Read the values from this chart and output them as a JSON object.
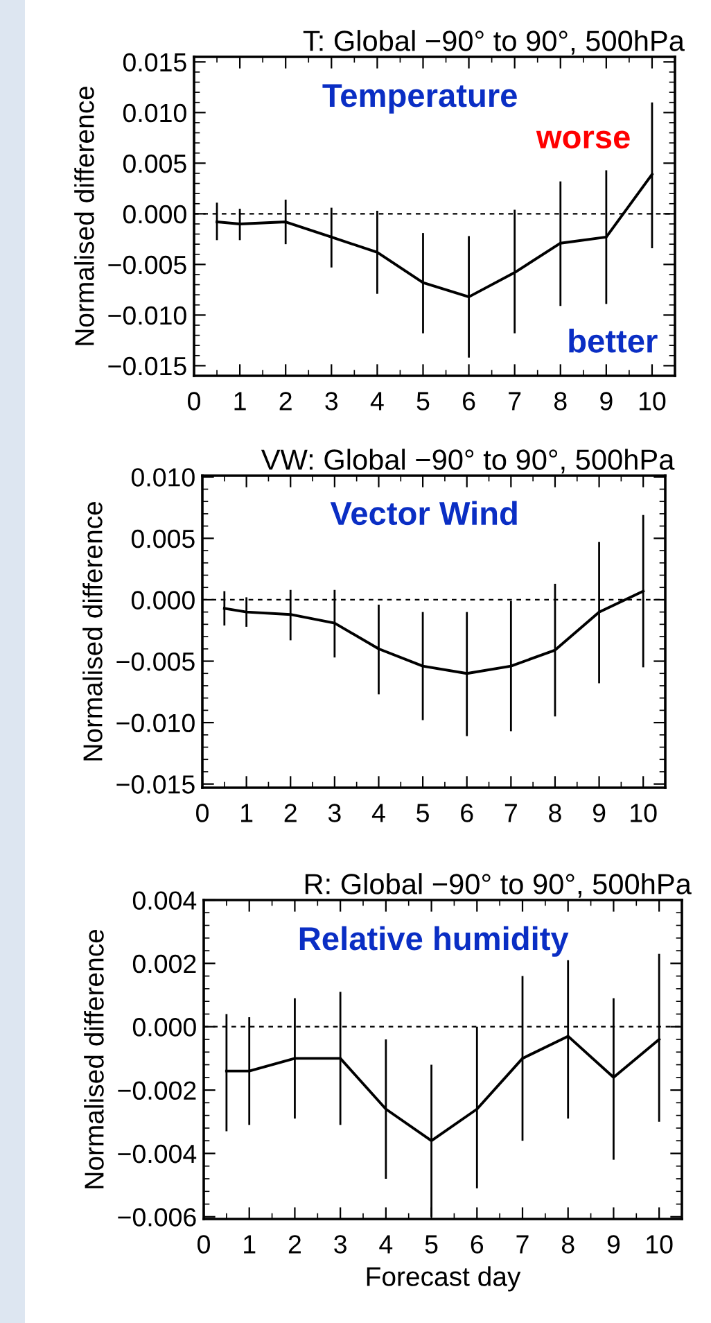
{
  "chart_data": [
    {
      "type": "line",
      "title": "T: Global −90° to 90°, 500hPa",
      "ylabel": "Normalised difference",
      "annotations": [
        "Temperature",
        "worse",
        "better"
      ],
      "x": [
        0.5,
        1,
        2,
        3,
        4,
        5,
        6,
        7,
        8,
        9,
        10
      ],
      "series": [
        {
          "color": "#000000",
          "values": [
            -0.0008,
            -0.001,
            -0.0008,
            -0.0023,
            -0.0038,
            -0.0068,
            -0.0082,
            -0.0058,
            -0.0029,
            -0.0023,
            0.0039
          ],
          "errors": [
            [
              -0.0026,
              0.0011
            ],
            [
              -0.0026,
              0.0005
            ],
            [
              -0.003,
              0.0014
            ],
            [
              -0.0053,
              0.0006
            ],
            [
              -0.0079,
              0.0003
            ],
            [
              -0.0118,
              -0.0019
            ],
            [
              -0.0142,
              -0.0022
            ],
            [
              -0.0118,
              0.0004
            ],
            [
              -0.0091,
              0.0032
            ],
            [
              -0.0089,
              0.0043
            ],
            [
              -0.0034,
              0.011
            ]
          ]
        }
      ],
      "xlim": [
        0,
        10.5
      ],
      "xticks": [
        0,
        1,
        2,
        3,
        4,
        5,
        6,
        7,
        8,
        9,
        10
      ],
      "ylim": [
        -0.016,
        0.0155
      ],
      "yticks": [
        {
          "value": -0.015,
          "label": "−0.015"
        },
        {
          "value": -0.01,
          "label": "−0.010"
        },
        {
          "value": -0.005,
          "label": "−0.005"
        },
        {
          "value": 0,
          "label": "0.000"
        },
        {
          "value": 0.005,
          "label": "0.005"
        },
        {
          "value": 0.01,
          "label": "0.010"
        },
        {
          "value": 0.015,
          "label": "0.015"
        }
      ],
      "ref_lines": [
        {
          "axis": "y",
          "value": 0,
          "label": null,
          "color": "#000000",
          "line_style": "dashed"
        }
      ],
      "grid": false,
      "legend": false,
      "marker": "none",
      "line_style": "solid"
    },
    {
      "type": "line",
      "title": "VW: Global −90° to 90°, 500hPa",
      "ylabel": "Normalised difference",
      "annotations": [
        "Vector Wind"
      ],
      "x": [
        0.5,
        1,
        2,
        3,
        4,
        5,
        6,
        7,
        8,
        9,
        10
      ],
      "series": [
        {
          "color": "#000000",
          "values": [
            -0.0007,
            -0.001,
            -0.0012,
            -0.0019,
            -0.004,
            -0.0054,
            -0.006,
            -0.0054,
            -0.0041,
            -0.001,
            0.0007
          ],
          "errors": [
            [
              -0.0021,
              0.0007
            ],
            [
              -0.0022,
              0.0002
            ],
            [
              -0.0033,
              0.0008
            ],
            [
              -0.0047,
              0.0008
            ],
            [
              -0.0077,
              -0.0004
            ],
            [
              -0.0098,
              -0.001
            ],
            [
              -0.0111,
              -0.001
            ],
            [
              -0.0107,
              -0.0001
            ],
            [
              -0.0095,
              0.0013
            ],
            [
              -0.0068,
              0.0047
            ],
            [
              -0.0055,
              0.0069
            ]
          ]
        }
      ],
      "xlim": [
        0,
        10.5
      ],
      "xticks": [
        0,
        1,
        2,
        3,
        4,
        5,
        6,
        7,
        8,
        9,
        10
      ],
      "ylim": [
        -0.0153,
        0.0101
      ],
      "yticks": [
        {
          "value": -0.015,
          "label": "−0.015"
        },
        {
          "value": -0.01,
          "label": "−0.010"
        },
        {
          "value": -0.005,
          "label": "−0.005"
        },
        {
          "value": 0,
          "label": "0.000"
        },
        {
          "value": 0.005,
          "label": "0.005"
        },
        {
          "value": 0.01,
          "label": "0.010"
        }
      ],
      "ref_lines": [
        {
          "axis": "y",
          "value": 0,
          "label": null,
          "color": "#000000",
          "line_style": "dashed"
        }
      ],
      "grid": false,
      "legend": false,
      "marker": "none",
      "line_style": "solid"
    },
    {
      "type": "line",
      "title": "R: Global −90° to 90°, 500hPa",
      "xlabel": "Forecast day",
      "ylabel": "Normalised difference",
      "annotations": [
        "Relative humidity"
      ],
      "x": [
        0.5,
        1,
        2,
        3,
        4,
        5,
        6,
        7,
        8,
        9,
        10
      ],
      "series": [
        {
          "color": "#000000",
          "values": [
            -0.0014,
            -0.0014,
            -0.001,
            -0.001,
            -0.0026,
            -0.0036,
            -0.0026,
            -0.001,
            -0.0003,
            -0.0016,
            -0.0004
          ],
          "errors": [
            [
              -0.0033,
              0.0004
            ],
            [
              -0.0031,
              0.0003
            ],
            [
              -0.0029,
              0.0009
            ],
            [
              -0.0031,
              0.0011
            ],
            [
              -0.0048,
              -0.0004
            ],
            [
              -0.006,
              -0.0012
            ],
            [
              -0.0051,
              0.0
            ],
            [
              -0.0036,
              0.0016
            ],
            [
              -0.0029,
              0.0021
            ],
            [
              -0.0042,
              0.0009
            ],
            [
              -0.003,
              0.0023
            ]
          ]
        }
      ],
      "xlim": [
        0,
        10.5
      ],
      "xticks": [
        0,
        1,
        2,
        3,
        4,
        5,
        6,
        7,
        8,
        9,
        10
      ],
      "ylim": [
        -0.00607,
        0.004
      ],
      "yticks": [
        {
          "value": -0.006,
          "label": "−0.006"
        },
        {
          "value": -0.004,
          "label": "−0.004"
        },
        {
          "value": -0.002,
          "label": "−0.002"
        },
        {
          "value": 0,
          "label": "0.000"
        },
        {
          "value": 0.002,
          "label": "0.002"
        },
        {
          "value": 0.004,
          "label": "0.004"
        }
      ],
      "ref_lines": [
        {
          "axis": "y",
          "value": 0,
          "label": null,
          "color": "#000000",
          "line_style": "dashed"
        }
      ],
      "grid": false,
      "legend": false,
      "marker": "none",
      "line_style": "solid"
    }
  ]
}
